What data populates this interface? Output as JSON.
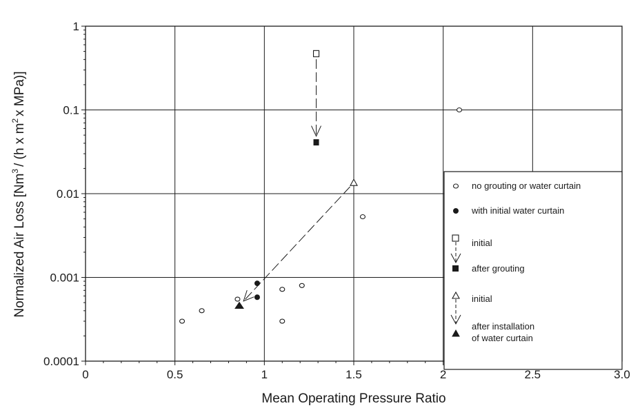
{
  "chart_data": {
    "type": "scatter",
    "xlabel": "Mean Operating Pressure Ratio",
    "ylabel_main": "Normalized Air Loss  [Nm",
    "ylabel_sup1": "3",
    "ylabel_mid": "/ (h x m",
    "ylabel_sup2": "2",
    "ylabel_end": "x MPa)]",
    "x_scale": "linear",
    "y_scale": "log",
    "xlim": [
      0,
      3.0
    ],
    "ylim": [
      0.0001,
      1
    ],
    "x_ticks": [
      0,
      0.5,
      1,
      1.5,
      2,
      2.5,
      3.0
    ],
    "x_tick_labels": [
      "0",
      "0.5",
      "1",
      "1.5",
      "2",
      "2.5",
      "3.0"
    ],
    "y_ticks": [
      0.0001,
      0.001,
      0.01,
      0.1,
      1
    ],
    "y_tick_labels": [
      "0.0001",
      "0.001",
      "0.01",
      "0.1",
      "1"
    ],
    "grid": true,
    "legend_position": "right",
    "series": [
      {
        "name": "no grouting or water curtain",
        "marker": "open-circle",
        "points": [
          [
            0.54,
            0.0003
          ],
          [
            0.65,
            0.0004
          ],
          [
            0.85,
            0.00055
          ],
          [
            1.1,
            0.00072
          ],
          [
            1.1,
            0.0003
          ],
          [
            1.21,
            0.0008
          ],
          [
            1.55,
            0.0053
          ],
          [
            2.09,
            0.1
          ]
        ]
      },
      {
        "name": "with initial water curtain",
        "marker": "filled-circle",
        "points": [
          [
            0.96,
            0.00085
          ],
          [
            0.96,
            0.00058
          ]
        ]
      },
      {
        "name": "initial",
        "marker": "open-square",
        "points": [
          [
            1.29,
            0.47
          ]
        ]
      },
      {
        "name": "after grouting",
        "marker": "filled-square",
        "points": [
          [
            1.29,
            0.041
          ]
        ]
      },
      {
        "name": "initial",
        "marker": "open-triangle",
        "points": [
          [
            1.5,
            0.0135
          ]
        ]
      },
      {
        "name": "after installation of water curtain",
        "marker": "filled-triangle",
        "points": [
          [
            0.86,
            0.00046
          ]
        ]
      }
    ],
    "arrows": [
      {
        "from": [
          1.29,
          0.47
        ],
        "to": [
          1.29,
          0.041
        ]
      },
      {
        "from": [
          1.5,
          0.0135
        ],
        "to": [
          0.86,
          0.00046
        ]
      }
    ],
    "legend_entries": {
      "e1": "no grouting or water curtain",
      "e2": "with initial water curtain",
      "e3": "initial",
      "e4": "after grouting",
      "e5": "initial",
      "e6_line1": "after installation",
      "e6_line2": "of water curtain"
    }
  }
}
